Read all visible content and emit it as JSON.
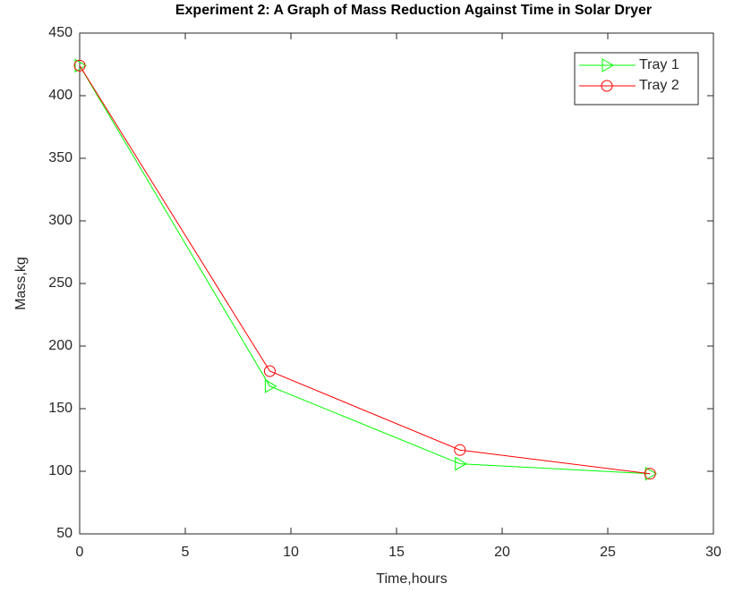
{
  "chart_data": {
    "type": "line",
    "title": "Experiment 2: A Graph of Mass Reduction Against Time in Solar Dryer",
    "xlabel": "Time,hours",
    "ylabel": "Mass,kg",
    "x": [
      0,
      9,
      18,
      27
    ],
    "series": [
      {
        "name": "Tray 1",
        "color": "#00ff00",
        "marker": "triangle-right",
        "values": [
          424,
          168,
          106,
          98
        ]
      },
      {
        "name": "Tray 2",
        "color": "#ff0000",
        "marker": "circle",
        "values": [
          424,
          180,
          117,
          98
        ]
      }
    ],
    "xlim": [
      0,
      30
    ],
    "xticks": [
      0,
      5,
      10,
      15,
      20,
      25,
      30
    ],
    "ylim": [
      50,
      450
    ],
    "yticks": [
      50,
      100,
      150,
      200,
      250,
      300,
      350,
      400,
      450
    ],
    "grid": false,
    "legend": "northeast"
  }
}
